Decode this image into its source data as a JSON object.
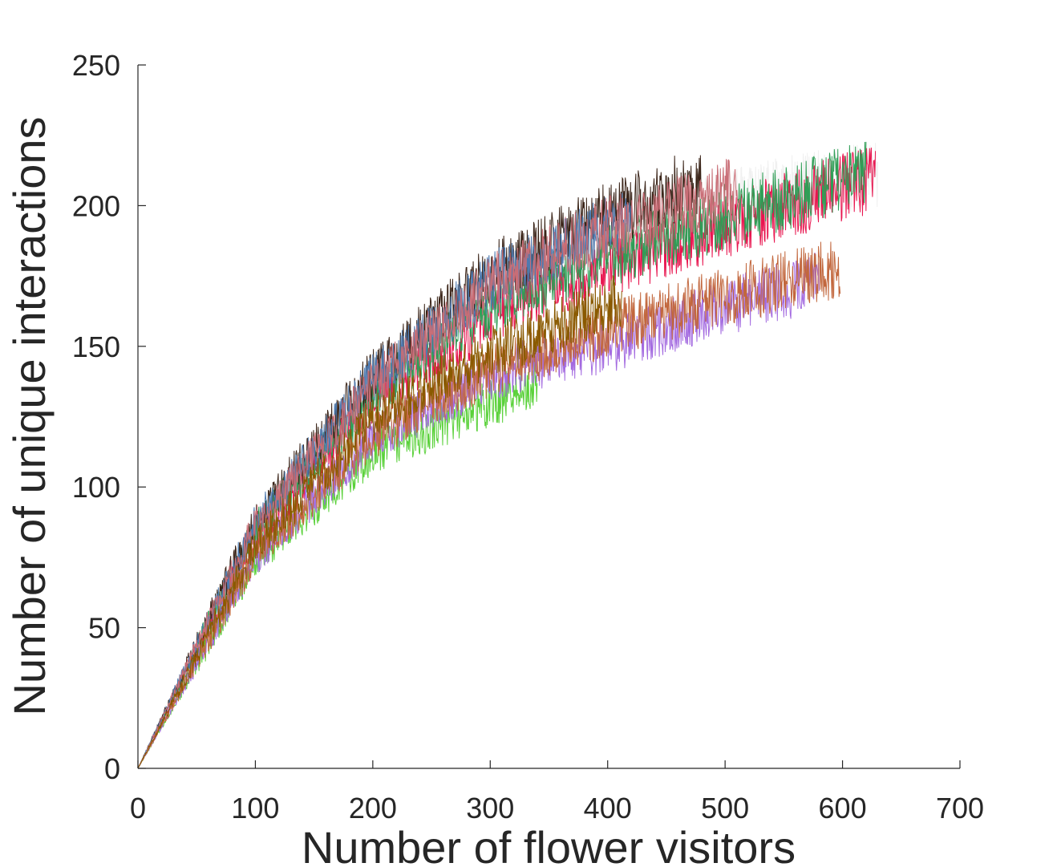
{
  "chart_data": {
    "type": "line",
    "title": "",
    "xlabel": "Number of flower visitors",
    "ylabel": "Number of unique interactions",
    "xlim": [
      0,
      700
    ],
    "ylim": [
      0,
      250
    ],
    "xticks": [
      0,
      100,
      200,
      300,
      400,
      500,
      600,
      700
    ],
    "yticks": [
      0,
      50,
      100,
      150,
      200,
      250
    ],
    "grid": false,
    "legend": "none",
    "series": [
      {
        "color": "#f0f0f0",
        "end_x": 630,
        "points": [
          [
            0,
            0
          ],
          [
            100,
            86
          ],
          [
            200,
            135
          ],
          [
            300,
            170
          ],
          [
            400,
            188
          ],
          [
            500,
            202
          ],
          [
            630,
            211
          ]
        ]
      },
      {
        "color": "#e8154f",
        "end_x": 628,
        "points": [
          [
            0,
            0
          ],
          [
            100,
            82
          ],
          [
            200,
            130
          ],
          [
            300,
            160
          ],
          [
            400,
            178
          ],
          [
            500,
            193
          ],
          [
            628,
            210
          ]
        ]
      },
      {
        "color": "#2f9e56",
        "end_x": 620,
        "points": [
          [
            0,
            0
          ],
          [
            100,
            85
          ],
          [
            200,
            132
          ],
          [
            300,
            164
          ],
          [
            400,
            182
          ],
          [
            500,
            196
          ],
          [
            620,
            212
          ]
        ]
      },
      {
        "color": "#3a2418",
        "end_x": 480,
        "points": [
          [
            0,
            0
          ],
          [
            100,
            88
          ],
          [
            200,
            140
          ],
          [
            300,
            176
          ],
          [
            400,
            197
          ],
          [
            480,
            209
          ]
        ]
      },
      {
        "color": "#4e7ab0",
        "end_x": 420,
        "points": [
          [
            0,
            0
          ],
          [
            100,
            87
          ],
          [
            200,
            138
          ],
          [
            300,
            173
          ],
          [
            420,
            196
          ]
        ]
      },
      {
        "color": "#c96d76",
        "end_x": 512,
        "points": [
          [
            0,
            0
          ],
          [
            100,
            86
          ],
          [
            200,
            136
          ],
          [
            300,
            172
          ],
          [
            400,
            192
          ],
          [
            512,
            206
          ]
        ]
      },
      {
        "color": "#5ad13a",
        "end_x": 340,
        "points": [
          [
            0,
            0
          ],
          [
            100,
            74
          ],
          [
            200,
            112
          ],
          [
            340,
            137
          ]
        ]
      },
      {
        "color": "#a36ae0",
        "end_x": 580,
        "points": [
          [
            0,
            0
          ],
          [
            100,
            75
          ],
          [
            200,
            117
          ],
          [
            300,
            140
          ],
          [
            400,
            150
          ],
          [
            500,
            164
          ],
          [
            580,
            173
          ]
        ]
      },
      {
        "color": "#c2673d",
        "end_x": 598,
        "points": [
          [
            0,
            0
          ],
          [
            100,
            76
          ],
          [
            200,
            118
          ],
          [
            300,
            141
          ],
          [
            400,
            156
          ],
          [
            500,
            168
          ],
          [
            598,
            178
          ]
        ]
      },
      {
        "color": "#8a5a00",
        "end_x": 412,
        "points": [
          [
            0,
            0
          ],
          [
            100,
            79
          ],
          [
            200,
            124
          ],
          [
            300,
            148
          ],
          [
            412,
            167
          ]
        ]
      }
    ]
  }
}
